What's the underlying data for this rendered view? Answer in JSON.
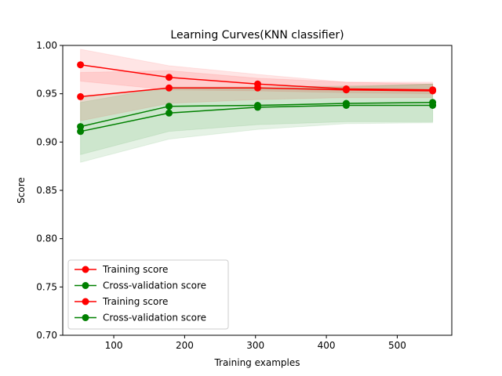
{
  "chart_data": {
    "type": "line",
    "title": "Learning Curves(KNN classifier)",
    "xlabel": "Training examples",
    "ylabel": "Score",
    "xlim": [
      28,
      577
    ],
    "ylim": [
      0.7,
      1.0
    ],
    "xticks": [
      100,
      200,
      300,
      400,
      500
    ],
    "yticks": [
      0.7,
      0.75,
      0.8,
      0.85,
      0.9,
      0.95,
      1.0
    ],
    "xtick_labels": [
      "100",
      "200",
      "300",
      "400",
      "500"
    ],
    "ytick_labels": [
      "0.70",
      "0.75",
      "0.80",
      "0.85",
      "0.90",
      "0.95",
      "1.00"
    ],
    "grid": false,
    "legend_position": "lower-left",
    "x": [
      53,
      178,
      303,
      428,
      550
    ],
    "series": [
      {
        "name": "Training score",
        "color": "#ff0000",
        "values": [
          0.98,
          0.967,
          0.96,
          0.955,
          0.954
        ],
        "band_low": [
          0.963,
          0.954,
          0.953,
          0.951,
          0.95
        ],
        "band_high": [
          0.996,
          0.979,
          0.97,
          0.962,
          0.962
        ]
      },
      {
        "name": "Cross-validation score",
        "color": "#008000",
        "values": [
          0.916,
          0.937,
          0.938,
          0.94,
          0.941
        ],
        "band_low": [
          0.887,
          0.911,
          0.918,
          0.921,
          0.921
        ],
        "band_high": [
          0.946,
          0.956,
          0.955,
          0.957,
          0.96
        ]
      },
      {
        "name": "Training score",
        "color": "#ff0000",
        "values": [
          0.947,
          0.956,
          0.956,
          0.954,
          0.953
        ],
        "band_low": [
          0.922,
          0.94,
          0.944,
          0.946,
          0.946
        ],
        "band_high": [
          0.972,
          0.974,
          0.966,
          0.962,
          0.96
        ]
      },
      {
        "name": "Cross-validation score",
        "color": "#008000",
        "values": [
          0.911,
          0.93,
          0.936,
          0.938,
          0.938
        ],
        "band_low": [
          0.879,
          0.903,
          0.913,
          0.919,
          0.92
        ],
        "band_high": [
          0.941,
          0.957,
          0.957,
          0.958,
          0.96
        ]
      }
    ]
  }
}
